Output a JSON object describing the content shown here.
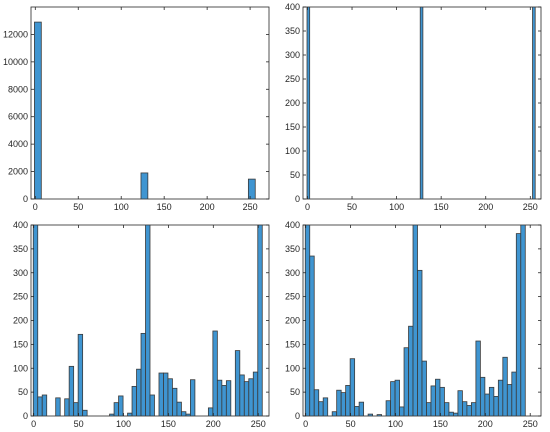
{
  "style": {
    "bar_fill": "#3f95d1",
    "bar_edge": "#3a3a3a",
    "axis_color": "#262626",
    "background": "#ffffff"
  },
  "chart_data": [
    {
      "type": "bar",
      "panel": "top-left",
      "title": "",
      "xlabel": "",
      "ylabel": "",
      "xlim": [
        -5,
        272
      ],
      "ylim": [
        0,
        14000
      ],
      "xticks": [
        0,
        50,
        100,
        150,
        200,
        250
      ],
      "yticks": [
        0,
        2000,
        4000,
        6000,
        8000,
        10000,
        12000
      ],
      "bar_width": 8,
      "x": [
        3,
        127,
        252
      ],
      "values": [
        12900,
        1900,
        1450
      ],
      "grid": false
    },
    {
      "type": "bar",
      "panel": "top-right",
      "title": "",
      "xlabel": "",
      "ylabel": "",
      "xlim": [
        -5,
        262
      ],
      "ylim": [
        0,
        400
      ],
      "xticks": [
        0,
        50,
        100,
        150,
        200,
        250
      ],
      "yticks": [
        0,
        50,
        100,
        150,
        200,
        250,
        300,
        350,
        400
      ],
      "bar_width": 3,
      "x": [
        1,
        128,
        254
      ],
      "values": [
        400,
        400,
        400
      ],
      "grid": false
    },
    {
      "type": "bar",
      "panel": "bottom-left",
      "title": "",
      "xlabel": "",
      "ylabel": "",
      "xlim": [
        -3,
        262
      ],
      "ylim": [
        0,
        400
      ],
      "xticks": [
        0,
        50,
        100,
        150,
        200,
        250
      ],
      "yticks": [
        0,
        50,
        100,
        150,
        200,
        250,
        300,
        350,
        400
      ],
      "bar_width": 5,
      "x": [
        2,
        7,
        12,
        17,
        22,
        27,
        32,
        37,
        42,
        47,
        52,
        57,
        62,
        67,
        72,
        77,
        82,
        87,
        92,
        97,
        102,
        107,
        112,
        117,
        122,
        127,
        132,
        137,
        142,
        147,
        152,
        157,
        162,
        167,
        172,
        177,
        182,
        187,
        192,
        197,
        202,
        207,
        212,
        217,
        222,
        227,
        232,
        237,
        242,
        247,
        252
      ],
      "values": [
        400,
        40,
        44,
        0,
        0,
        38,
        0,
        36,
        104,
        28,
        171,
        12,
        0,
        0,
        0,
        0,
        0,
        4,
        28,
        42,
        0,
        6,
        62,
        98,
        173,
        400,
        44,
        0,
        90,
        90,
        78,
        58,
        29,
        9,
        4,
        76,
        0,
        0,
        0,
        17,
        178,
        75,
        64,
        74,
        0,
        137,
        86,
        72,
        78,
        92,
        400
      ],
      "grid": false
    },
    {
      "type": "bar",
      "panel": "bottom-right",
      "title": "",
      "xlabel": "",
      "ylabel": "",
      "xlim": [
        -3,
        262
      ],
      "ylim": [
        0,
        400
      ],
      "xticks": [
        0,
        50,
        100,
        150,
        200,
        250
      ],
      "yticks": [
        0,
        50,
        100,
        150,
        200,
        250,
        300,
        350,
        400
      ],
      "bar_width": 5,
      "x": [
        2,
        7,
        12,
        17,
        22,
        27,
        32,
        37,
        42,
        47,
        52,
        57,
        62,
        67,
        72,
        77,
        82,
        87,
        92,
        97,
        102,
        107,
        112,
        117,
        122,
        127,
        132,
        137,
        142,
        147,
        152,
        157,
        162,
        167,
        172,
        177,
        182,
        187,
        192,
        197,
        202,
        207,
        212,
        217,
        222,
        227,
        232,
        237,
        242,
        247,
        252
      ],
      "values": [
        400,
        335,
        55,
        30,
        38,
        0,
        9,
        54,
        49,
        64,
        120,
        20,
        29,
        0,
        4,
        0,
        3,
        0,
        32,
        72,
        75,
        19,
        143,
        188,
        400,
        305,
        115,
        28,
        63,
        77,
        60,
        28,
        8,
        6,
        53,
        30,
        22,
        28,
        157,
        81,
        46,
        60,
        41,
        75,
        123,
        66,
        92,
        382,
        400,
        0,
        0
      ],
      "grid": false
    }
  ]
}
